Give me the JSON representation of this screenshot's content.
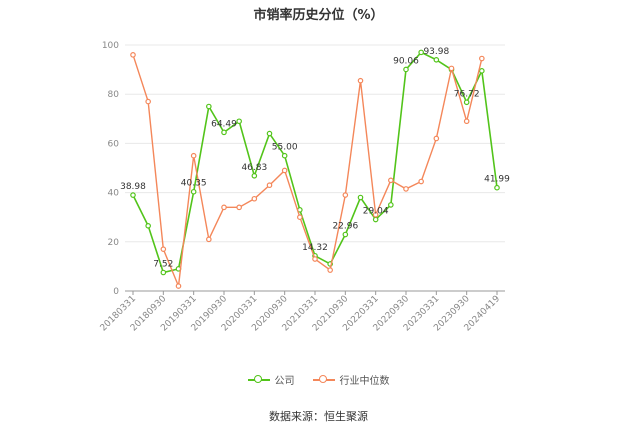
{
  "chart_data": {
    "type": "line",
    "title": "市销率历史分位（%）",
    "xlabel": "",
    "ylabel": "",
    "ylim": [
      0,
      100
    ],
    "yticks": [
      "0",
      "20",
      "40",
      "60",
      "80",
      "100"
    ],
    "x_tick_labels": [
      "20180331",
      "20180930",
      "20190331",
      "20190930",
      "20200331",
      "20200930",
      "20210331",
      "20210930",
      "20220331",
      "20220930",
      "20230331",
      "20230930",
      "20240419"
    ],
    "x": [
      "20180331",
      "20180630",
      "20180930",
      "20181231",
      "20190331",
      "20190630",
      "20190930",
      "20191231",
      "20200331",
      "20200630",
      "20200930",
      "20201231",
      "20210331",
      "20210630",
      "20210930",
      "20211231",
      "20220331",
      "20220630",
      "20220930",
      "20221231",
      "20230331",
      "20230630",
      "20230930",
      "20231231",
      "20240419"
    ],
    "series": [
      {
        "name": "公司",
        "color": "#52c41a",
        "values": [
          38.98,
          26.5,
          7.52,
          9.0,
          40.35,
          75.0,
          64.49,
          69.0,
          46.83,
          64.0,
          55.0,
          33.0,
          14.32,
          11.0,
          22.96,
          38.0,
          29.04,
          35.0,
          90.06,
          97.0,
          93.98,
          90.0,
          76.72,
          89.5,
          41.99
        ]
      },
      {
        "name": "行业中位数",
        "color": "#f4875a",
        "values": [
          96.0,
          77.0,
          17.0,
          2.0,
          55.0,
          21.0,
          34.0,
          34.0,
          37.5,
          43.0,
          49.0,
          30.0,
          13.0,
          8.5,
          39.0,
          85.5,
          31.0,
          45.0,
          41.5,
          44.5,
          62.0,
          90.5,
          69.0,
          94.5,
          null
        ]
      }
    ],
    "data_labels": [
      {
        "series": 0,
        "index": 0,
        "text": "38.98"
      },
      {
        "series": 0,
        "index": 2,
        "text": "7.52"
      },
      {
        "series": 0,
        "index": 4,
        "text": "40.35"
      },
      {
        "series": 0,
        "index": 6,
        "text": "64.49"
      },
      {
        "series": 0,
        "index": 8,
        "text": "46.83"
      },
      {
        "series": 0,
        "index": 10,
        "text": "55.00"
      },
      {
        "series": 0,
        "index": 12,
        "text": "14.32"
      },
      {
        "series": 0,
        "index": 14,
        "text": "22.96"
      },
      {
        "series": 0,
        "index": 16,
        "text": "29.04"
      },
      {
        "series": 0,
        "index": 18,
        "text": "90.06"
      },
      {
        "series": 0,
        "index": 20,
        "text": "93.98"
      },
      {
        "series": 0,
        "index": 22,
        "text": "76.72"
      },
      {
        "series": 0,
        "index": 24,
        "text": "41.99"
      }
    ],
    "grid": true,
    "legend_position": "bottom-center"
  },
  "source_text": "数据来源：恒生聚源"
}
